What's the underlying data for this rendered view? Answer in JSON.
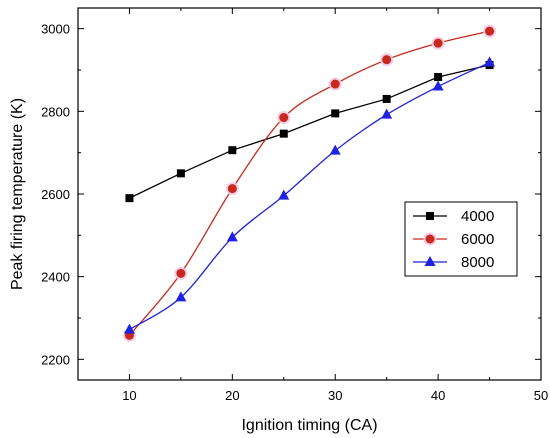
{
  "chart_data": {
    "type": "line",
    "title": "",
    "xlabel": "Ignition timing (CA)",
    "ylabel": "Peak firing temperature (K)",
    "xlim": [
      5,
      50
    ],
    "ylim": [
      2150,
      3050
    ],
    "x_ticks": [
      10,
      20,
      30,
      40,
      50
    ],
    "y_ticks": [
      2200,
      2400,
      2600,
      2800,
      3000
    ],
    "grid": false,
    "legend_position": "middle-right",
    "x": [
      10,
      15,
      20,
      25,
      30,
      35,
      40,
      45
    ],
    "series": [
      {
        "name": "4000",
        "color": "#000000",
        "marker": "square",
        "smooth": false,
        "values": [
          2590,
          2650,
          2706,
          2746,
          2795,
          2830,
          2883,
          2912
        ]
      },
      {
        "name": "6000",
        "color": "#c8291c",
        "marker": "circle",
        "smooth": true,
        "values": [
          2258,
          2408,
          2613,
          2785,
          2866,
          2925,
          2965,
          2994
        ]
      },
      {
        "name": "8000",
        "color": "#1f22e0",
        "marker": "triangle",
        "smooth": true,
        "values": [
          2272,
          2350,
          2495,
          2596,
          2705,
          2792,
          2860,
          2918
        ]
      }
    ]
  }
}
